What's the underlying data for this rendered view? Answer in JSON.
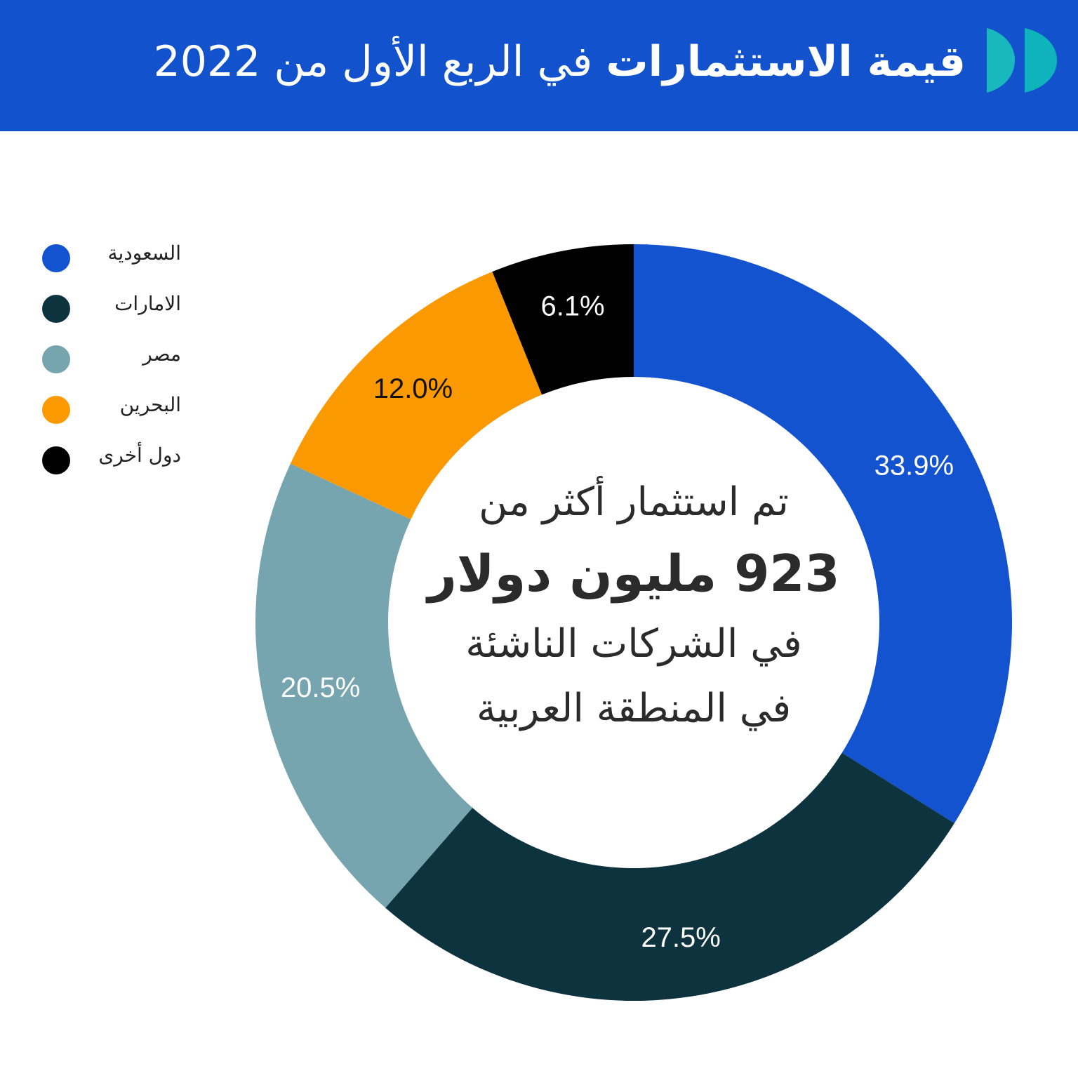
{
  "header": {
    "title_bold": "قيمة الاستثمارات",
    "title_rest": "في الربع الأول من 2022",
    "logo_colors": [
      "#19B8BE",
      "#0EB3BB"
    ]
  },
  "center": {
    "line1": "تم استثمار أكثر من",
    "line2": "923 مليون دولار",
    "line3": "في الشركات الناشئة",
    "line4": "في المنطقة العربية"
  },
  "chart_data": {
    "type": "pie",
    "donut": true,
    "categories": [
      "السعودية",
      "الامارات",
      "مصر",
      "البحرين",
      "دول أخرى"
    ],
    "values": [
      33.9,
      27.5,
      20.5,
      12.0,
      6.1
    ],
    "labels": [
      "33.9%",
      "27.5%",
      "20.5%",
      "12.0%",
      "6.1%"
    ],
    "colors": [
      "#1353CF",
      "#0D333E",
      "#76A4AF",
      "#FB9903",
      "#000000"
    ],
    "label_colors": [
      "#ffffff",
      "#ffffff",
      "#ffffff",
      "#111111",
      "#ffffff"
    ],
    "legend_position": "left",
    "start": "top",
    "direction": "clockwise"
  }
}
